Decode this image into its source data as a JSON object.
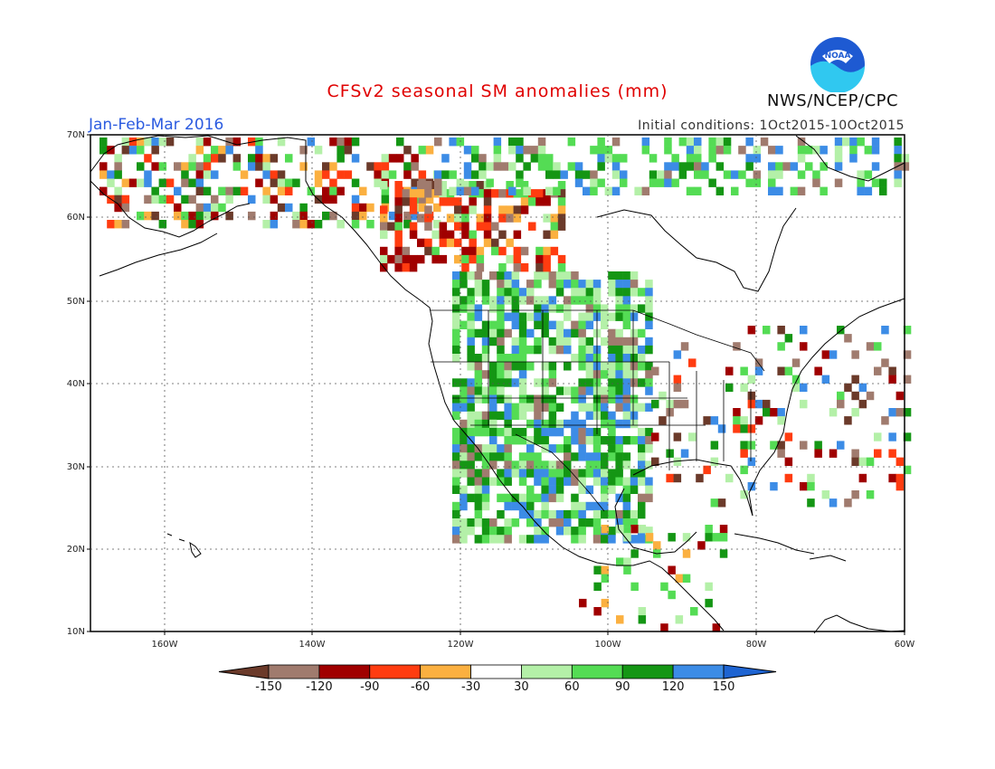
{
  "header": {
    "title": "CFSv2 seasonal SM anomalies (mm)",
    "period": "Jan-Feb-Mar 2016",
    "initial_conditions": "Initial conditions: 1Oct2015-10Oct2015",
    "agency": "NWS/NCEP/CPC",
    "logo_text": "NOAA"
  },
  "map": {
    "lat_labels": [
      "70N",
      "60N",
      "50N",
      "40N",
      "30N",
      "20N",
      "10N"
    ],
    "lon_labels": [
      "160W",
      "140W",
      "120W",
      "100W",
      "80W",
      "60W"
    ]
  },
  "legend": {
    "labels": [
      "-150",
      "-120",
      "-90",
      "-60",
      "-30",
      "30",
      "60",
      "90",
      "120",
      "150"
    ],
    "colors": [
      "#6b3a2a",
      "#a07b6e",
      "#a00000",
      "#ff3c10",
      "#fbb040",
      "#ffffff",
      "#b4f0a8",
      "#54dc54",
      "#149614",
      "#3c8ce6",
      "#1e64d2"
    ]
  }
}
